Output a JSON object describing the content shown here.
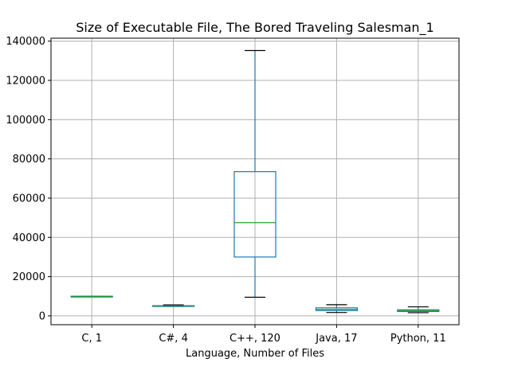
{
  "chart_data": {
    "type": "box",
    "title": "Size of Executable File, The Bored Traveling Salesman_1",
    "xlabel": "Language, Number of Files",
    "ylabel": "",
    "ylim": [
      -4500,
      141500
    ],
    "yticks": [
      0,
      20000,
      40000,
      60000,
      80000,
      100000,
      120000,
      140000
    ],
    "ytick_labels": [
      "0",
      "20000",
      "40000",
      "60000",
      "80000",
      "100000",
      "120000",
      "140000"
    ],
    "grid": true,
    "categories": [
      "C, 1",
      "C#, 4",
      "C++, 120",
      "Java, 17",
      "Python, 11"
    ],
    "boxes": [
      {
        "whisker_low": 10000,
        "q1": 10000,
        "median": 10000,
        "q3": 10000,
        "whisker_high": 10000
      },
      {
        "whisker_low": 4800,
        "q1": 5000,
        "median": 5100,
        "q3": 5200,
        "whisker_high": 5600
      },
      {
        "whisker_low": 9500,
        "q1": 30000,
        "median": 47500,
        "q3": 73500,
        "whisker_high": 135200
      },
      {
        "whisker_low": 1700,
        "q1": 2700,
        "median": 3300,
        "q3": 4100,
        "whisker_high": 5700
      },
      {
        "whisker_low": 1600,
        "q1": 2200,
        "median": 2700,
        "q3": 3100,
        "whisker_high": 4600
      }
    ],
    "colors": {
      "box": "#1f77b4",
      "median": "#2ca02c",
      "whisker_cap": "#000000",
      "grid": "#b0b0b0",
      "axis": "#000000"
    }
  }
}
